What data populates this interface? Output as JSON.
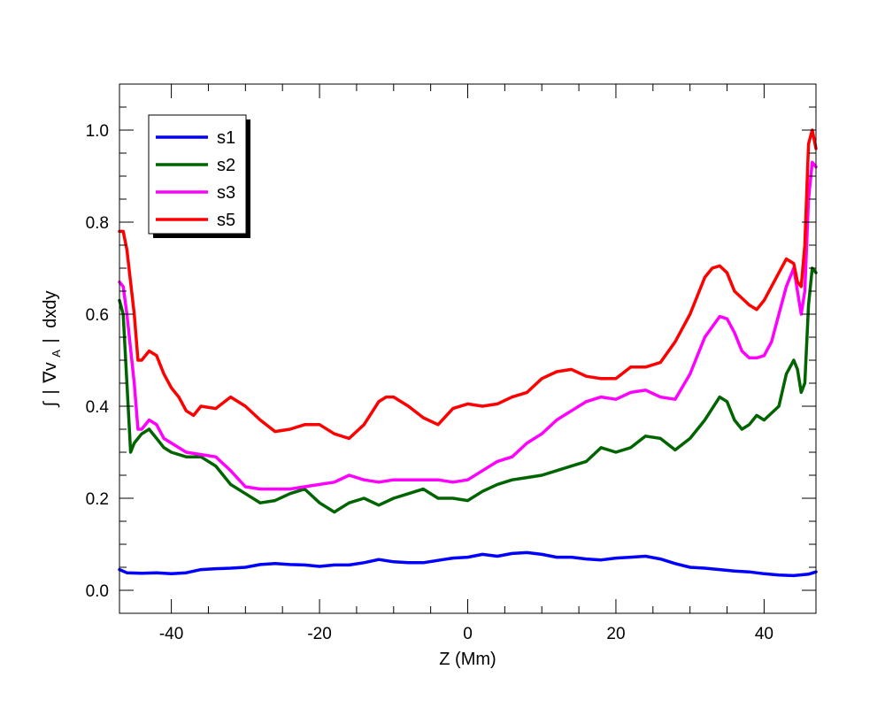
{
  "chart_data": {
    "type": "line",
    "xlabel": "Z (Mm)",
    "ylabel_parts": {
      "integral": "∫",
      "bar_left": "|",
      "nabla": "∇v",
      "subscript": "A",
      "bar_right": "|",
      "tail": "dxdy"
    },
    "xlim": [
      -47,
      47
    ],
    "ylim": [
      -0.05,
      1.1
    ],
    "xticks": [
      -40,
      -20,
      0,
      20,
      40
    ],
    "xtick_labels": [
      "-40",
      "-20",
      "0",
      "20",
      "40"
    ],
    "yticks": [
      0.0,
      0.2,
      0.4,
      0.6,
      0.8,
      1.0
    ],
    "ytick_labels": [
      "0.0",
      "0.2",
      "0.4",
      "0.6",
      "0.8",
      "1.0"
    ],
    "grid": false,
    "legend_position": "top-left",
    "series": [
      {
        "name": "s1",
        "color": "#0000ff",
        "points": [
          [
            -47,
            0.045
          ],
          [
            -46,
            0.038
          ],
          [
            -44,
            0.037
          ],
          [
            -42,
            0.038
          ],
          [
            -40,
            0.036
          ],
          [
            -38,
            0.038
          ],
          [
            -36,
            0.045
          ],
          [
            -34,
            0.047
          ],
          [
            -32,
            0.048
          ],
          [
            -30,
            0.05
          ],
          [
            -28,
            0.056
          ],
          [
            -26,
            0.058
          ],
          [
            -24,
            0.056
          ],
          [
            -22,
            0.055
          ],
          [
            -20,
            0.052
          ],
          [
            -18,
            0.055
          ],
          [
            -16,
            0.055
          ],
          [
            -14,
            0.06
          ],
          [
            -12,
            0.067
          ],
          [
            -10,
            0.062
          ],
          [
            -8,
            0.06
          ],
          [
            -6,
            0.06
          ],
          [
            -4,
            0.065
          ],
          [
            -2,
            0.07
          ],
          [
            0,
            0.072
          ],
          [
            2,
            0.078
          ],
          [
            4,
            0.074
          ],
          [
            6,
            0.08
          ],
          [
            8,
            0.082
          ],
          [
            10,
            0.078
          ],
          [
            12,
            0.072
          ],
          [
            14,
            0.072
          ],
          [
            16,
            0.068
          ],
          [
            18,
            0.066
          ],
          [
            20,
            0.07
          ],
          [
            22,
            0.072
          ],
          [
            24,
            0.074
          ],
          [
            26,
            0.068
          ],
          [
            28,
            0.058
          ],
          [
            30,
            0.05
          ],
          [
            32,
            0.048
          ],
          [
            34,
            0.045
          ],
          [
            36,
            0.042
          ],
          [
            38,
            0.04
          ],
          [
            40,
            0.036
          ],
          [
            42,
            0.033
          ],
          [
            44,
            0.032
          ],
          [
            46,
            0.035
          ],
          [
            47,
            0.04
          ]
        ]
      },
      {
        "name": "s2",
        "color": "#006400",
        "points": [
          [
            -47,
            0.63
          ],
          [
            -46.5,
            0.6
          ],
          [
            -46,
            0.45
          ],
          [
            -45.5,
            0.3
          ],
          [
            -45,
            0.32
          ],
          [
            -44,
            0.34
          ],
          [
            -43,
            0.35
          ],
          [
            -42,
            0.33
          ],
          [
            -41,
            0.31
          ],
          [
            -40,
            0.3
          ],
          [
            -38,
            0.29
          ],
          [
            -36,
            0.29
          ],
          [
            -34,
            0.27
          ],
          [
            -32,
            0.23
          ],
          [
            -30,
            0.21
          ],
          [
            -28,
            0.19
          ],
          [
            -26,
            0.195
          ],
          [
            -24,
            0.21
          ],
          [
            -22,
            0.22
          ],
          [
            -20,
            0.19
          ],
          [
            -18,
            0.17
          ],
          [
            -16,
            0.19
          ],
          [
            -14,
            0.2
          ],
          [
            -12,
            0.185
          ],
          [
            -10,
            0.2
          ],
          [
            -8,
            0.21
          ],
          [
            -6,
            0.22
          ],
          [
            -4,
            0.2
          ],
          [
            -2,
            0.2
          ],
          [
            0,
            0.195
          ],
          [
            2,
            0.215
          ],
          [
            4,
            0.23
          ],
          [
            6,
            0.24
          ],
          [
            8,
            0.245
          ],
          [
            10,
            0.25
          ],
          [
            12,
            0.26
          ],
          [
            14,
            0.27
          ],
          [
            16,
            0.28
          ],
          [
            18,
            0.31
          ],
          [
            20,
            0.3
          ],
          [
            22,
            0.31
          ],
          [
            24,
            0.335
          ],
          [
            26,
            0.33
          ],
          [
            28,
            0.305
          ],
          [
            30,
            0.33
          ],
          [
            32,
            0.37
          ],
          [
            34,
            0.42
          ],
          [
            35,
            0.41
          ],
          [
            36,
            0.37
          ],
          [
            37,
            0.35
          ],
          [
            38,
            0.36
          ],
          [
            39,
            0.38
          ],
          [
            40,
            0.37
          ],
          [
            42,
            0.4
          ],
          [
            43,
            0.47
          ],
          [
            44,
            0.5
          ],
          [
            44.5,
            0.48
          ],
          [
            45,
            0.43
          ],
          [
            45.5,
            0.45
          ],
          [
            46,
            0.62
          ],
          [
            46.5,
            0.7
          ],
          [
            47,
            0.69
          ]
        ]
      },
      {
        "name": "s3",
        "color": "#ff00ff",
        "points": [
          [
            -47,
            0.67
          ],
          [
            -46.5,
            0.66
          ],
          [
            -46,
            0.6
          ],
          [
            -45,
            0.45
          ],
          [
            -44.5,
            0.35
          ],
          [
            -44,
            0.35
          ],
          [
            -43,
            0.37
          ],
          [
            -42,
            0.36
          ],
          [
            -41,
            0.33
          ],
          [
            -40,
            0.32
          ],
          [
            -38,
            0.3
          ],
          [
            -36,
            0.295
          ],
          [
            -34,
            0.29
          ],
          [
            -32,
            0.26
          ],
          [
            -30,
            0.225
          ],
          [
            -28,
            0.22
          ],
          [
            -26,
            0.22
          ],
          [
            -24,
            0.22
          ],
          [
            -22,
            0.225
          ],
          [
            -20,
            0.23
          ],
          [
            -18,
            0.235
          ],
          [
            -16,
            0.25
          ],
          [
            -14,
            0.24
          ],
          [
            -12,
            0.235
          ],
          [
            -10,
            0.24
          ],
          [
            -8,
            0.24
          ],
          [
            -6,
            0.24
          ],
          [
            -4,
            0.24
          ],
          [
            -2,
            0.235
          ],
          [
            0,
            0.24
          ],
          [
            2,
            0.26
          ],
          [
            4,
            0.28
          ],
          [
            6,
            0.29
          ],
          [
            8,
            0.32
          ],
          [
            10,
            0.34
          ],
          [
            12,
            0.37
          ],
          [
            14,
            0.39
          ],
          [
            16,
            0.41
          ],
          [
            18,
            0.42
          ],
          [
            20,
            0.415
          ],
          [
            22,
            0.43
          ],
          [
            24,
            0.435
          ],
          [
            26,
            0.42
          ],
          [
            28,
            0.415
          ],
          [
            30,
            0.47
          ],
          [
            32,
            0.55
          ],
          [
            34,
            0.595
          ],
          [
            35,
            0.59
          ],
          [
            36,
            0.56
          ],
          [
            37,
            0.52
          ],
          [
            38,
            0.505
          ],
          [
            39,
            0.505
          ],
          [
            40,
            0.51
          ],
          [
            41,
            0.54
          ],
          [
            42,
            0.6
          ],
          [
            43,
            0.66
          ],
          [
            44,
            0.7
          ],
          [
            44.5,
            0.65
          ],
          [
            45,
            0.6
          ],
          [
            45.5,
            0.65
          ],
          [
            46,
            0.85
          ],
          [
            46.5,
            0.93
          ],
          [
            47,
            0.92
          ]
        ]
      },
      {
        "name": "s5",
        "color": "#ff0000",
        "points": [
          [
            -47,
            0.78
          ],
          [
            -46.5,
            0.78
          ],
          [
            -46,
            0.74
          ],
          [
            -45,
            0.6
          ],
          [
            -44.5,
            0.5
          ],
          [
            -44,
            0.5
          ],
          [
            -43,
            0.52
          ],
          [
            -42,
            0.51
          ],
          [
            -41,
            0.47
          ],
          [
            -40,
            0.44
          ],
          [
            -39,
            0.42
          ],
          [
            -38,
            0.39
          ],
          [
            -37,
            0.38
          ],
          [
            -36,
            0.4
          ],
          [
            -34,
            0.395
          ],
          [
            -32,
            0.42
          ],
          [
            -30,
            0.4
          ],
          [
            -28,
            0.37
          ],
          [
            -26,
            0.345
          ],
          [
            -24,
            0.35
          ],
          [
            -22,
            0.36
          ],
          [
            -20,
            0.36
          ],
          [
            -18,
            0.34
          ],
          [
            -16,
            0.33
          ],
          [
            -14,
            0.36
          ],
          [
            -12,
            0.41
          ],
          [
            -11,
            0.42
          ],
          [
            -10,
            0.42
          ],
          [
            -8,
            0.4
          ],
          [
            -6,
            0.375
          ],
          [
            -4,
            0.36
          ],
          [
            -2,
            0.395
          ],
          [
            0,
            0.405
          ],
          [
            2,
            0.4
          ],
          [
            4,
            0.405
          ],
          [
            6,
            0.42
          ],
          [
            8,
            0.43
          ],
          [
            10,
            0.46
          ],
          [
            12,
            0.475
          ],
          [
            14,
            0.48
          ],
          [
            16,
            0.465
          ],
          [
            18,
            0.46
          ],
          [
            20,
            0.46
          ],
          [
            22,
            0.485
          ],
          [
            24,
            0.485
          ],
          [
            26,
            0.495
          ],
          [
            28,
            0.54
          ],
          [
            30,
            0.6
          ],
          [
            32,
            0.68
          ],
          [
            33,
            0.7
          ],
          [
            34,
            0.705
          ],
          [
            35,
            0.69
          ],
          [
            36,
            0.65
          ],
          [
            38,
            0.62
          ],
          [
            39,
            0.61
          ],
          [
            40,
            0.63
          ],
          [
            42,
            0.69
          ],
          [
            43,
            0.72
          ],
          [
            44,
            0.71
          ],
          [
            44.5,
            0.67
          ],
          [
            45,
            0.66
          ],
          [
            45.5,
            0.75
          ],
          [
            46,
            0.97
          ],
          [
            46.5,
            1.0
          ],
          [
            47,
            0.96
          ]
        ]
      }
    ]
  }
}
